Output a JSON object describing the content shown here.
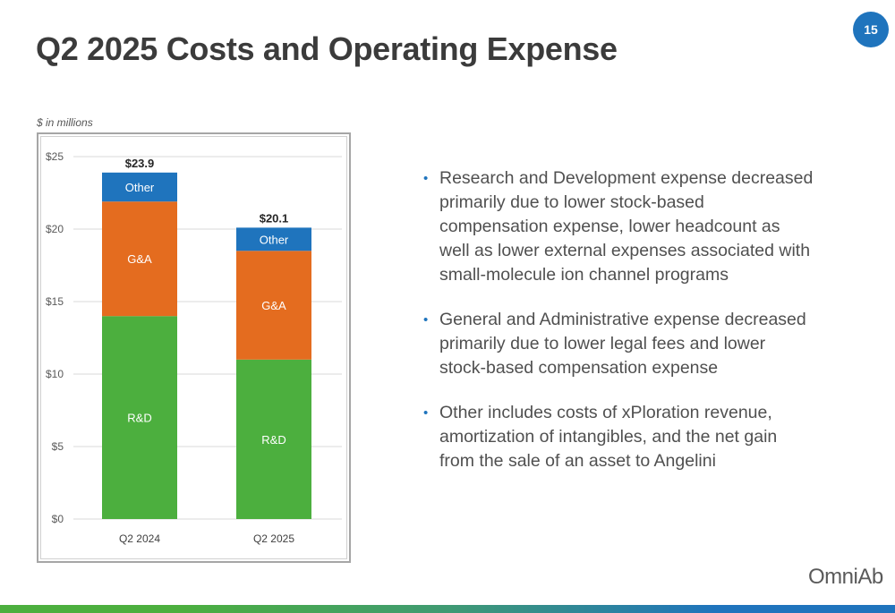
{
  "slide": {
    "title": "Q2 2025 Costs and Operating Expense",
    "page_number": "15",
    "units_note": "$ in millions",
    "logo_text": "OmniAb"
  },
  "bullets": [
    "Research and Development expense decreased primarily due to lower stock-based compensation expense, lower headcount as well as lower external expenses associated with small-molecule ion channel programs",
    "General and Administrative expense decreased primarily due to lower legal fees and lower stock-based compensation expense",
    "Other includes costs of xPloration revenue, amortization of intangibles, and the net gain from the sale of an asset to Angelini"
  ],
  "colors": {
    "rd": "#4caf3e",
    "ga": "#e46c1f",
    "other": "#1f74bd",
    "accent": "#1f74bd",
    "grid": "#d9d9d9"
  },
  "chart_data": {
    "type": "bar",
    "stacked": true,
    "categories": [
      "Q2 2024",
      "Q2 2025"
    ],
    "series": [
      {
        "name": "R&D",
        "values": [
          14.0,
          11.0
        ]
      },
      {
        "name": "G&A",
        "values": [
          7.9,
          7.5
        ]
      },
      {
        "name": "Other",
        "values": [
          2.0,
          1.6
        ]
      }
    ],
    "totals": [
      "$23.9",
      "$20.1"
    ],
    "yticks": [
      "$0",
      "$5",
      "$10",
      "$15",
      "$20",
      "$25"
    ],
    "ylim": [
      0,
      25
    ],
    "grid": true,
    "legend": "none"
  }
}
